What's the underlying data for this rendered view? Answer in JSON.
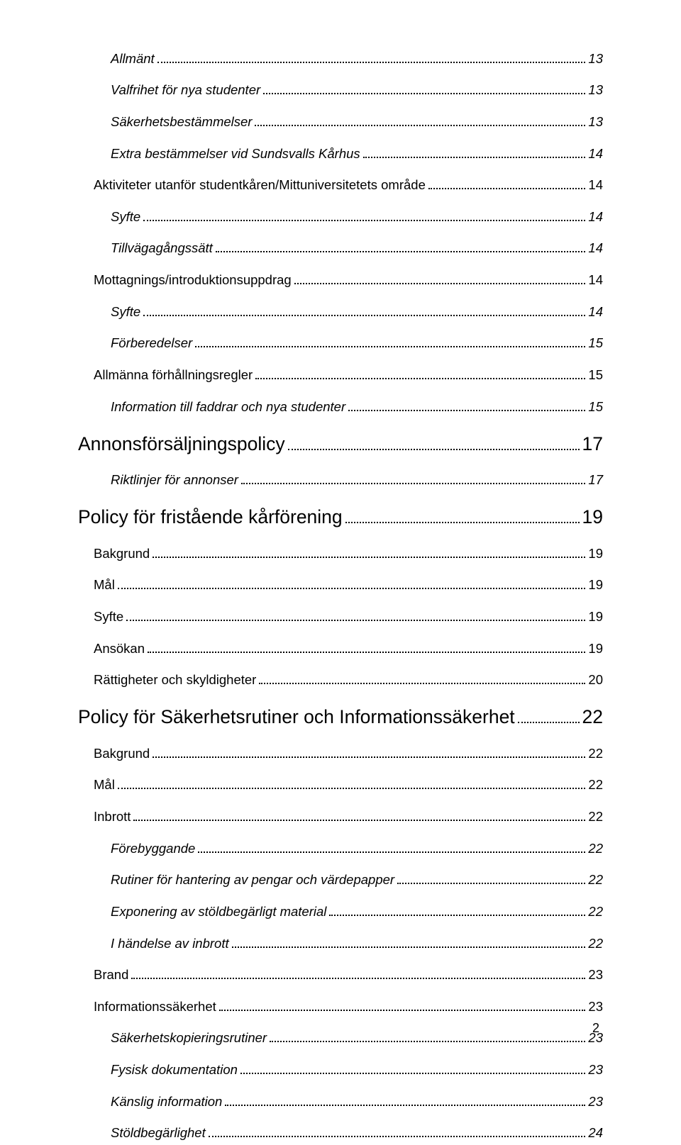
{
  "page_number": "2",
  "entries": [
    {
      "level": 3,
      "label": "Allmänt",
      "page": "13"
    },
    {
      "level": 3,
      "label": "Valfrihet för nya studenter",
      "page": "13"
    },
    {
      "level": 3,
      "label": "Säkerhetsbestämmelser",
      "page": "13"
    },
    {
      "level": 3,
      "label": "Extra bestämmelser vid Sundsvalls Kårhus",
      "page": "14"
    },
    {
      "level": 2,
      "label": "Aktiviteter utanför studentkåren/Mittuniversitetets område",
      "page": "14"
    },
    {
      "level": 3,
      "label": "Syfte",
      "page": "14"
    },
    {
      "level": 3,
      "label": "Tillvägagångssätt",
      "page": "14"
    },
    {
      "level": 2,
      "label": "Mottagnings/introduktionsuppdrag",
      "page": "14"
    },
    {
      "level": 3,
      "label": "Syfte",
      "page": "14"
    },
    {
      "level": 3,
      "label": "Förberedelser",
      "page": "15"
    },
    {
      "level": 2,
      "label": "Allmänna förhållningsregler",
      "page": "15"
    },
    {
      "level": 3,
      "label": "Information till faddrar och nya studenter",
      "page": "15"
    },
    {
      "level": 1,
      "label": "Annonsförsäljningspolicy",
      "page": "17"
    },
    {
      "level": 3,
      "label": "Riktlinjer för annonser",
      "page": "17"
    },
    {
      "level": 1,
      "label": "Policy för fristående kårförening",
      "page": "19"
    },
    {
      "level": 2,
      "label": "Bakgrund",
      "page": "19"
    },
    {
      "level": 2,
      "label": "Mål",
      "page": "19"
    },
    {
      "level": 2,
      "label": "Syfte",
      "page": "19"
    },
    {
      "level": 2,
      "label": "Ansökan",
      "page": "19"
    },
    {
      "level": 2,
      "label": "Rättigheter och skyldigheter",
      "page": "20"
    },
    {
      "level": 1,
      "label": "Policy för Säkerhetsrutiner och Informationssäkerhet",
      "page": "22"
    },
    {
      "level": 2,
      "label": "Bakgrund",
      "page": "22"
    },
    {
      "level": 2,
      "label": "Mål",
      "page": "22"
    },
    {
      "level": 2,
      "label": "Inbrott",
      "page": "22"
    },
    {
      "level": 3,
      "label": "Förebyggande",
      "page": "22"
    },
    {
      "level": 3,
      "label": "Rutiner för hantering av pengar och värdepapper",
      "page": "22"
    },
    {
      "level": 3,
      "label": "Exponering av stöldbegärligt material",
      "page": "22"
    },
    {
      "level": 3,
      "label": "I händelse av inbrott",
      "page": "22"
    },
    {
      "level": 2,
      "label": "Brand",
      "page": "23"
    },
    {
      "level": 2,
      "label": "Informationssäkerhet",
      "page": "23"
    },
    {
      "level": 3,
      "label": "Säkerhetskopieringsrutiner",
      "page": "23"
    },
    {
      "level": 3,
      "label": "Fysisk dokumentation",
      "page": "23"
    },
    {
      "level": 3,
      "label": "Känslig information",
      "page": "23"
    },
    {
      "level": 3,
      "label": "Stöldbegärlighet",
      "page": "24"
    }
  ]
}
